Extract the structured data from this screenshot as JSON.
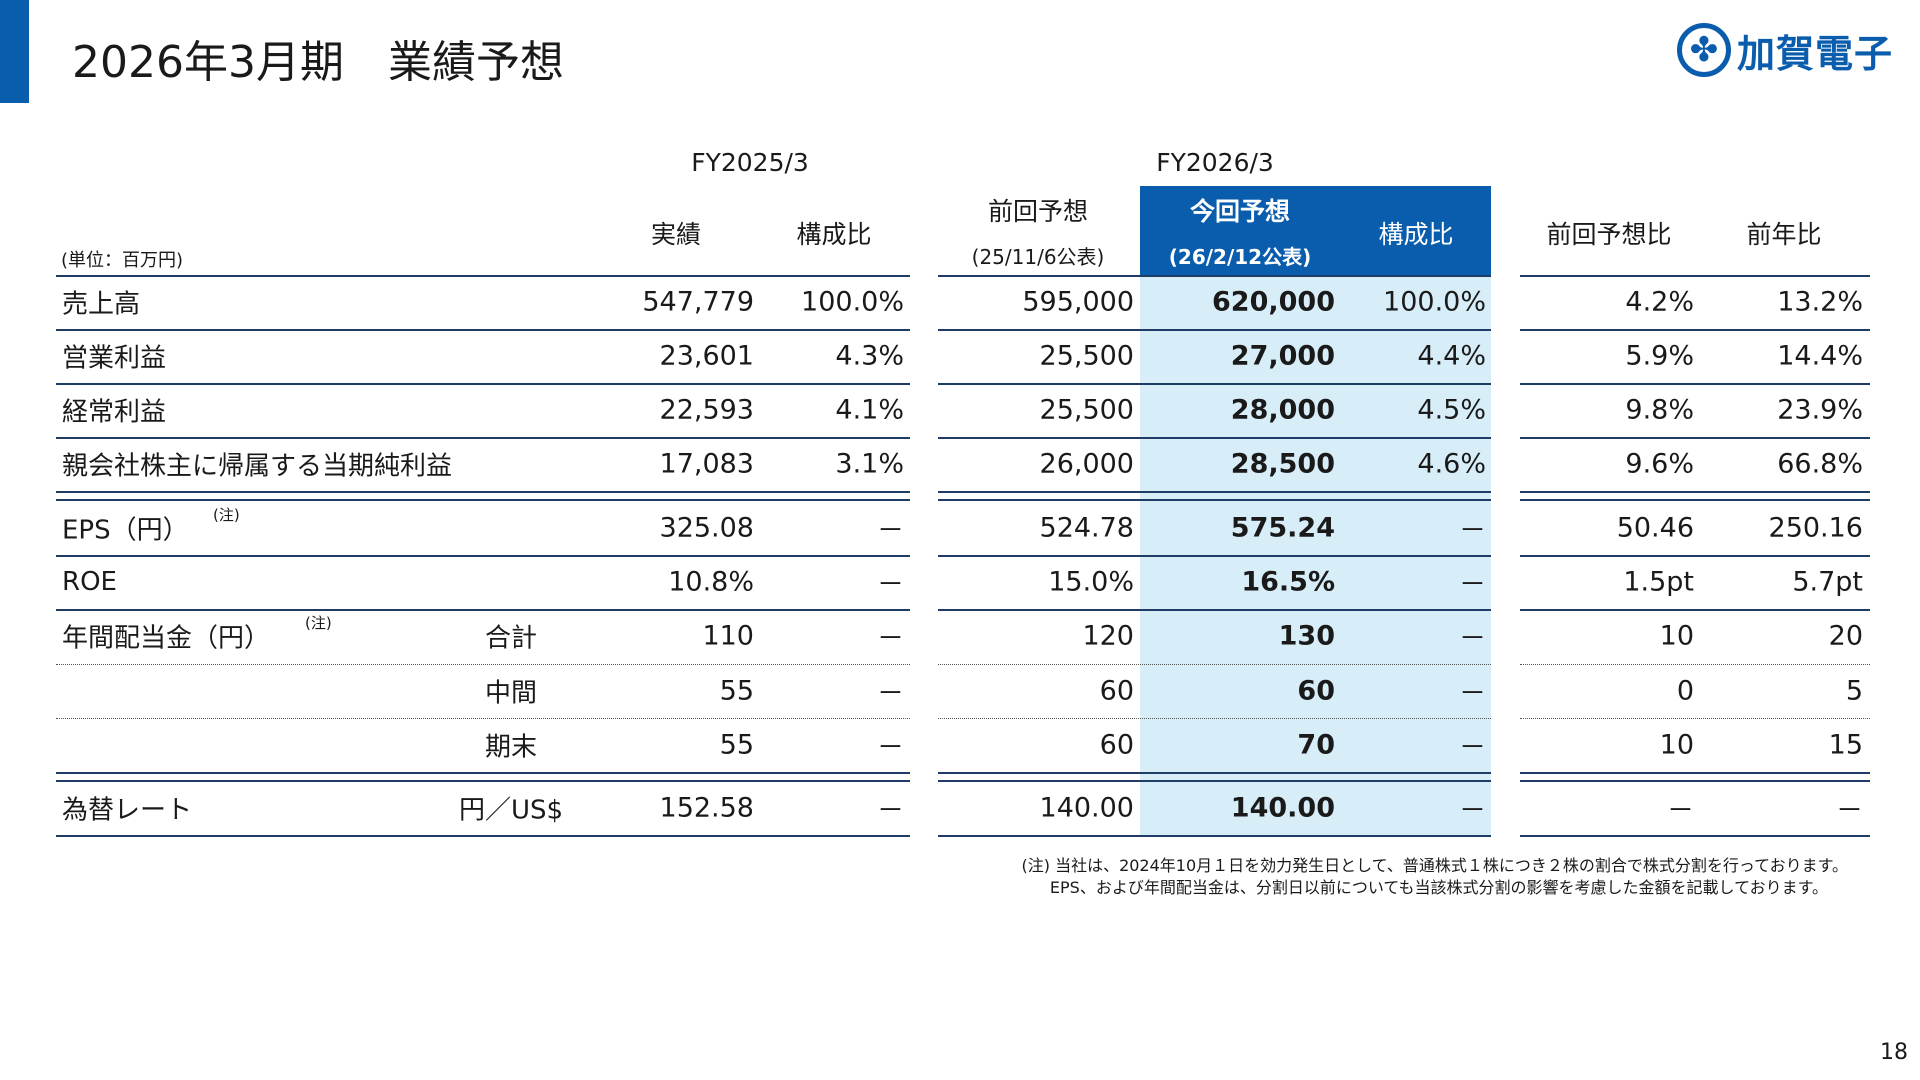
{
  "title": "2026年3月期　業績予想",
  "logo": {
    "text": "加賀電子",
    "accent": "#0a5cad"
  },
  "unit": "(単位：百万円)",
  "headers": {
    "fy2025": "FY2025/3",
    "fy2026": "FY2026/3",
    "actual": "実績",
    "ratio1": "構成比",
    "prev_forecast": "前回予想",
    "prev_date": "(25/11/6公表)",
    "curr_forecast": "今回予想",
    "curr_date": "(26/2/12公表)",
    "ratio2": "構成比",
    "vs_prev": "前回予想比",
    "yoy": "前年比"
  },
  "rows": [
    {
      "label": "売上高",
      "sub": "",
      "note": "",
      "values": [
        "547,779",
        "100.0%",
        "595,000",
        "620,000",
        "100.0%",
        "4.2%",
        "13.2%"
      ]
    },
    {
      "label": "営業利益",
      "sub": "",
      "note": "",
      "values": [
        "23,601",
        "4.3%",
        "25,500",
        "27,000",
        "4.4%",
        "5.9%",
        "14.4%"
      ]
    },
    {
      "label": "経常利益",
      "sub": "",
      "note": "",
      "values": [
        "22,593",
        "4.1%",
        "25,500",
        "28,000",
        "4.5%",
        "9.8%",
        "23.9%"
      ]
    },
    {
      "label": "親会社株主に帰属する当期純利益",
      "sub": "",
      "note": "",
      "values": [
        "17,083",
        "3.1%",
        "26,000",
        "28,500",
        "4.6%",
        "9.6%",
        "66.8%"
      ]
    },
    {
      "label": "EPS（円）",
      "sub": "",
      "note": "(注)",
      "values": [
        "325.08",
        "－",
        "524.78",
        "575.24",
        "－",
        "50.46",
        "250.16"
      ]
    },
    {
      "label": "ROE",
      "sub": "",
      "note": "",
      "values": [
        "10.8%",
        "－",
        "15.0%",
        "16.5%",
        "－",
        "1.5pt",
        "5.7pt"
      ]
    },
    {
      "label": "年間配当金（円）",
      "sub": "合計",
      "note": "(注)",
      "values": [
        "110",
        "－",
        "120",
        "130",
        "－",
        "10",
        "20"
      ]
    },
    {
      "label": "",
      "sub": "中間",
      "note": "",
      "values": [
        "55",
        "－",
        "60",
        "60",
        "－",
        "0",
        "5"
      ]
    },
    {
      "label": "",
      "sub": "期末",
      "note": "",
      "values": [
        "55",
        "－",
        "60",
        "70",
        "－",
        "10",
        "15"
      ]
    },
    {
      "label": "為替レート",
      "sub": "円／US$",
      "note": "",
      "values": [
        "152.58",
        "－",
        "140.00",
        "140.00",
        "－",
        "－",
        "－"
      ]
    }
  ],
  "footnote": [
    "(注) 当社は、2024年10月１日を効力発生日として、普通株式１株につき２株の割合で株式分割を行っております。",
    "EPS、および年間配当金は、分割日以前についても当該株式分割の影響を考慮した金額を記載しております。"
  ],
  "page_number": "18",
  "colors": {
    "header_blue": "#0a5cad",
    "highlight": "#d7edf8",
    "rule": "#1f3c66"
  }
}
